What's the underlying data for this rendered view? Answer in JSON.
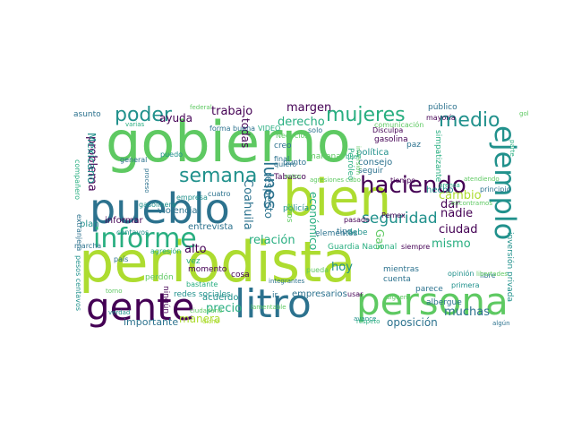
{
  "word_cloud": {
    "palette": {
      "dark_purple": "#440154",
      "indigo": "#3b528b",
      "teal_blue": "#2c728e",
      "teal": "#21918c",
      "green_teal": "#28ae80",
      "green": "#5ec962",
      "lime": "#addc30",
      "yellow": "#fde725"
    },
    "words": [
      "gobierno",
      "periodista",
      "bien",
      "pueblo",
      "persona",
      "litro",
      "gente",
      "informe",
      "ejemplo",
      "haciendo",
      "semana",
      "poder",
      "mujeres",
      "medio",
      "seguridad",
      "lunes",
      "Coahuila",
      "problema",
      "relación",
      "ciudad",
      "trabajo",
      "margen",
      "derecho",
      "precio",
      "alto",
      "hoy",
      "dar",
      "nadie",
      "cambio",
      "mismo",
      "muchas",
      "oposición",
      "manera",
      "importante",
      "ayuda",
      "todas",
      "respecto",
      "económico",
      "Gas",
      "Mexicano",
      "hecho",
      "entrevista",
      "acuerdo",
      "violencia",
      "informar",
      "plan",
      "empresarios",
      "Guardia Nacional",
      "Pemex",
      "política",
      "consejo",
      "seguir",
      "tiempo",
      "dicho",
      "albergue",
      "cuenta",
      "parece",
      "mientras",
      "siempre",
      "pasado",
      "elementos",
      "tipo",
      "debe",
      "gasolina",
      "paz",
      "punto",
      "creo",
      "mañana",
      "Petróleo",
      "Tabasco",
      "policía",
      "años",
      "cosa",
      "momento",
      "vez",
      "redes sociales",
      "perdón",
      "ningún",
      "asunto",
      "público",
      "mayoría",
      "general",
      "puedo",
      "verdad",
      "pesos centavos",
      "marcha",
      "país",
      "libre",
      "principio",
      "opinión",
      "primera",
      "inversión privada",
      "avance",
      "respeto",
      "algún",
      "ir",
      "usar",
      "pueda",
      "empresa",
      "cuatro",
      "bastante",
      "agresión",
      "centavos",
      "gasolinera",
      "extranjera",
      "compañero",
      "forma",
      "buena",
      "VIDEO",
      "Negocios",
      "quiero",
      "final",
      "solo",
      "Disculpa",
      "comunicación",
      "simpatizante",
      "parte",
      "gobernadores",
      "varias",
      "federal",
      "inversión",
      "atendiendo",
      "encontramos",
      "libertades",
      "siguen",
      "torno",
      "ciudadano",
      "lamentable",
      "proceso",
      "agresiones",
      "buen",
      "cabo",
      "estos",
      "integrantes",
      "prensa",
      "veces",
      "lugar"
    ]
  }
}
